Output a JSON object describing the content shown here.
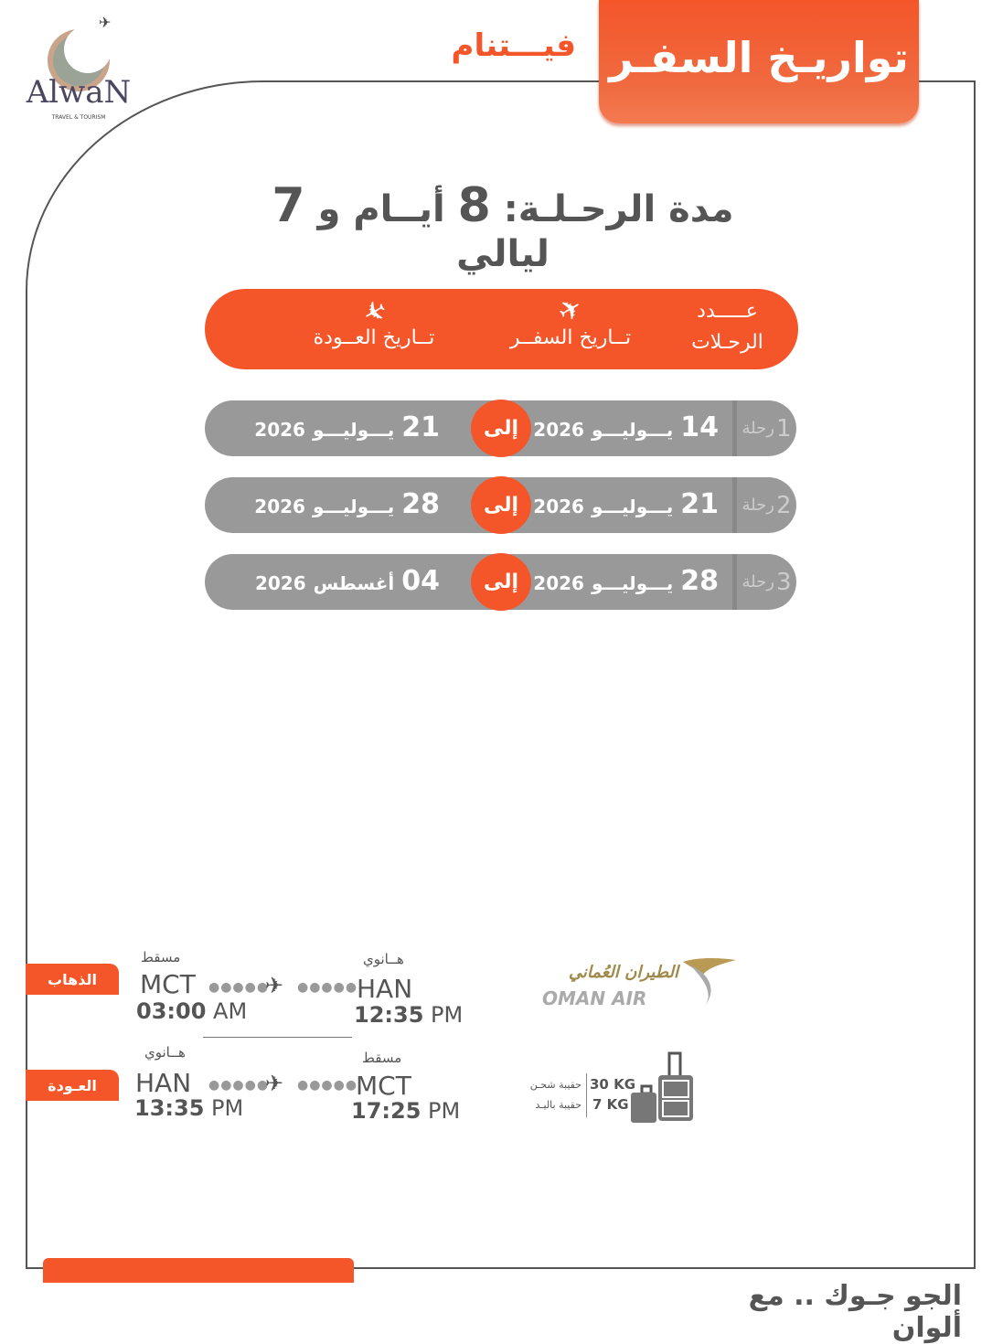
{
  "brand": {
    "logo_text": "AlwaN",
    "logo_sub": "TRAVEL & TOURISM"
  },
  "header": {
    "title": "تواريـخ السفـر",
    "country": "فيـــتنام"
  },
  "duration": {
    "label": "مدة الرحـلـة:",
    "days": "8",
    "days_word": "أيــام و",
    "nights": "7",
    "nights_word": "ليالي"
  },
  "table_header": {
    "count": "عـــــدد الرحـلات",
    "departure": "تــاريخ السفــر",
    "return": "تــاريخ العــودة",
    "departure_icon": "plane-takeoff-icon",
    "return_icon": "plane-landing-icon"
  },
  "trips": [
    {
      "label": "رحلة",
      "num": "1",
      "from_day": "14",
      "from_month": "يـــوليـــو",
      "from_year": "2026",
      "to_word": "إلى",
      "to_day": "21",
      "to_month": "يـــوليـــو",
      "to_year": "2026"
    },
    {
      "label": "رحلة",
      "num": "2",
      "from_day": "21",
      "from_month": "يـــوليـــو",
      "from_year": "2026",
      "to_word": "إلى",
      "to_day": "28",
      "to_month": "يـــوليـــو",
      "to_year": "2026"
    },
    {
      "label": "رحلة",
      "num": "3",
      "from_day": "28",
      "from_month": "يـــوليـــو",
      "from_year": "2026",
      "to_word": "إلى",
      "to_day": "04",
      "to_month": "أغسطس",
      "to_year": "2026"
    }
  ],
  "flights": {
    "outbound": {
      "label": "الذهاب",
      "from_city": "مسقط",
      "from_code": "MCT",
      "from_time": "03:00",
      "from_ampm": "AM",
      "to_city": "هــانوي",
      "to_code": "HAN",
      "to_time": "12:35",
      "to_ampm": "PM"
    },
    "return": {
      "label": "العـودة",
      "from_city": "هــانوي",
      "from_code": "HAN",
      "from_time": "13:35",
      "from_ampm": "PM",
      "to_city": "مسقط",
      "to_code": "MCT",
      "to_time": "17:25",
      "to_ampm": "PM"
    }
  },
  "airline": {
    "name_ar": "الطيران العُماني",
    "name_en": "OMAN AIR",
    "color": "#a08a4a"
  },
  "baggage": {
    "checked_label": "حقيبة شحـن",
    "checked_weight": "30 KG",
    "cabin_label": "حقيبة باليـد",
    "cabin_weight": "7 KG"
  },
  "footer": {
    "slogan": "الجو جـوك .. مع ألوان"
  },
  "colors": {
    "accent": "#f4562a",
    "row": "#999999",
    "text": "#555555"
  }
}
